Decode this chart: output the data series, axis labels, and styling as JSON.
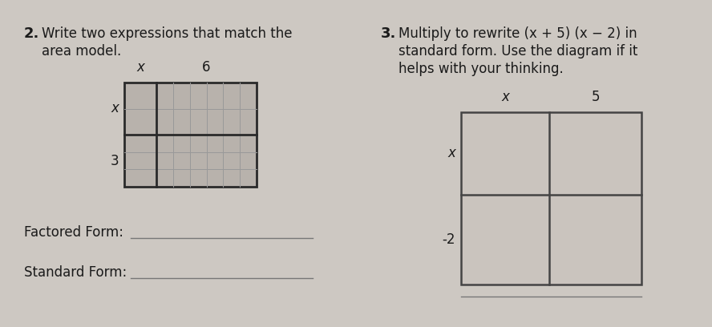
{
  "bg_color": "#cdc8c2",
  "text_color": "#1a1a1a",
  "q2_number": "2.",
  "q2_line1": "Write two expressions that match the",
  "q2_line2": "area model.",
  "q2_col_labels": [
    "x",
    "6"
  ],
  "q2_row_labels": [
    "x",
    "3"
  ],
  "q2_factored_label": "Factored Form:",
  "q2_standard_label": "Standard Form:",
  "q3_number": "3.",
  "q3_line1": "Multiply to rewrite (x + 5) (x − 2) in",
  "q3_line2": "standard form. Use the diagram if it",
  "q3_line3": "helps with your thinking.",
  "q3_col_labels": [
    "x",
    "5"
  ],
  "q3_row_labels": [
    "x",
    "-2"
  ],
  "grid_fill_q2": "#b8b2ac",
  "line_color": "#555555",
  "grid_border": "#2a2a2a",
  "grid_inner": "#888888"
}
